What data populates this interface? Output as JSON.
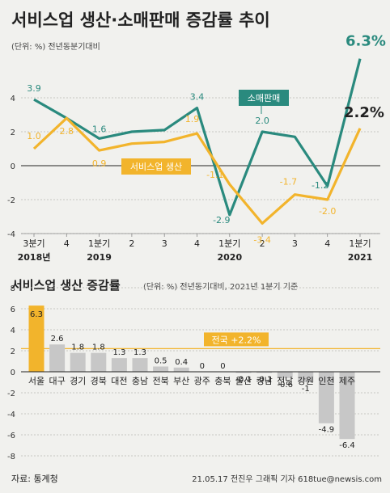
{
  "header": {
    "title": "서비스업 생산·소매판매 증감률 추이",
    "unit_note": "(단위: %) 전년동분기대비"
  },
  "colors": {
    "retail": "#2a8a7e",
    "service": "#f2b42c",
    "bar": "#c7c7c7",
    "highlight": "#f2b42c",
    "grid": "#b9b9b3",
    "zero": "#222222"
  },
  "chart_data": [
    {
      "type": "line",
      "categories": [
        "3분기",
        "4",
        "1분기",
        "2",
        "3",
        "4",
        "1분기",
        "2",
        "3",
        "4",
        "1분기"
      ],
      "year_labels": [
        {
          "index": 0,
          "label": "2018년"
        },
        {
          "index": 2,
          "label": "2019"
        },
        {
          "index": 6,
          "label": "2020"
        },
        {
          "index": 10,
          "label": "2021"
        }
      ],
      "ylim": [
        -4,
        6.5
      ],
      "yticks": [
        -4,
        -2,
        0,
        2,
        4
      ],
      "ytick_labels": [
        "-4",
        "-2",
        "0",
        "2",
        "4"
      ],
      "grid": true,
      "series": [
        {
          "name": "소매판매",
          "values": [
            3.9,
            2.8,
            1.6,
            2.0,
            2.1,
            3.4,
            -2.9,
            2.0,
            1.7,
            -1.2,
            6.3
          ],
          "labels": [
            "3.9",
            "",
            "1.6",
            "",
            "",
            "3.4",
            "-2.9",
            "2.0",
            "",
            "-1.2",
            "6.3%"
          ]
        },
        {
          "name": "서비스업 생산",
          "values": [
            1.0,
            2.8,
            0.9,
            1.3,
            1.4,
            1.9,
            -1.1,
            -3.4,
            -1.7,
            -2.0,
            2.2
          ],
          "labels": [
            "1.0",
            "2.8",
            "0.9",
            "",
            "",
            "1.9",
            "-1.1",
            "-3.4",
            "-1.7",
            "-2.0",
            "2.2%"
          ]
        }
      ]
    },
    {
      "type": "bar",
      "title": "서비스업 생산 증감률",
      "subtitle": "(단위: %) 전년동기대비, 2021년 1분기 기준",
      "categories": [
        "서울",
        "대구",
        "경기",
        "경북",
        "대전",
        "충남",
        "전북",
        "부산",
        "광주",
        "충북",
        "울산",
        "경남",
        "전남",
        "강원",
        "인천",
        "제주"
      ],
      "values": [
        6.3,
        2.6,
        1.8,
        1.8,
        1.3,
        1.3,
        0.5,
        0.4,
        0,
        0,
        -0.1,
        -0.1,
        -0.6,
        -1,
        -4.9,
        -6.4
      ],
      "value_labels": [
        "6.3",
        "2.6",
        "1.8",
        "1.8",
        "1.3",
        "1.3",
        "0.5",
        "0.4",
        "0",
        "0",
        "-0.1",
        "-0.1",
        "-0.6",
        "-1",
        "-4.9",
        "-6.4"
      ],
      "ylim": [
        -8,
        8
      ],
      "yticks": [
        -8,
        -6,
        -4,
        -2,
        0,
        2,
        4,
        6,
        8
      ],
      "ytick_labels": [
        "-8",
        "-6",
        "-4",
        "-2",
        "0",
        "2",
        "4",
        "6",
        "8"
      ],
      "grid": true,
      "reference_line": {
        "value": 2.2,
        "label": "전국 +2.2%"
      }
    }
  ],
  "footer": {
    "source": "자료: 통계청",
    "credit": "21.05.17 전진우 그래픽 기자 618tue@newsis.com"
  }
}
